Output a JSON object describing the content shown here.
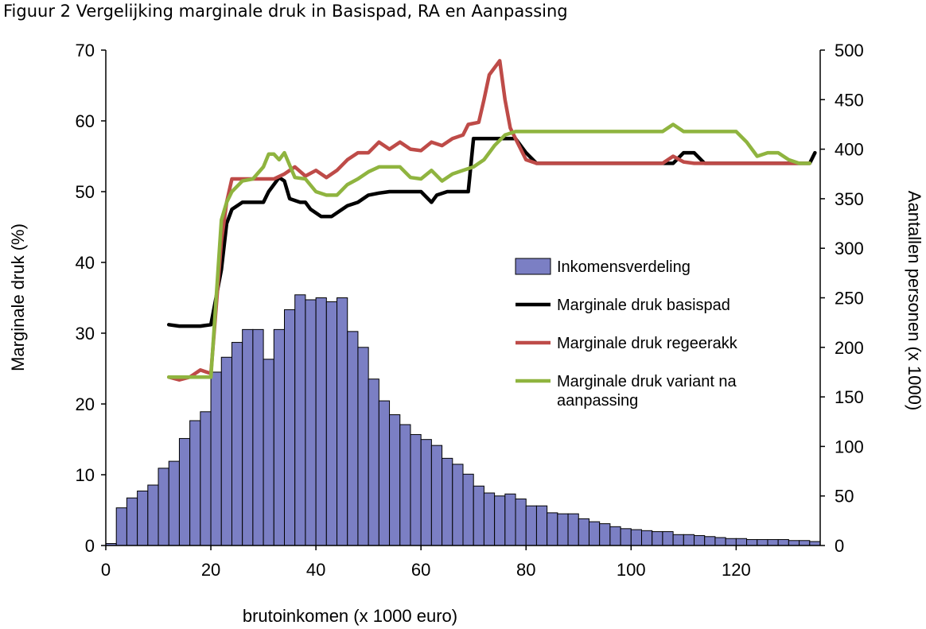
{
  "caption": "Figuur 2 Vergelijking marginale druk in Basispad, RA en Aanpassing",
  "chart_data": {
    "type": "bar+line",
    "xlabel": "brutoinkomen (x 1000 euro)",
    "ylabel_left": "Marginale druk (%)",
    "ylabel_right": "Aantallen personen (x 1000)",
    "xlim": [
      0,
      136
    ],
    "ylim_left": [
      0,
      70
    ],
    "ylim_right": [
      0,
      500
    ],
    "x_ticks": [
      0,
      20,
      40,
      60,
      80,
      100,
      120
    ],
    "y_left_ticks": [
      0,
      10,
      20,
      30,
      40,
      50,
      60,
      70
    ],
    "y_right_ticks": [
      0,
      50,
      100,
      150,
      200,
      250,
      300,
      350,
      400,
      450,
      500
    ],
    "grid": false,
    "legend_position": "right-middle",
    "histogram": {
      "name": "Inkomensverdeling",
      "color": "#7b7fc4",
      "bin_width": 2,
      "bin_starts": [
        0,
        2,
        4,
        6,
        8,
        10,
        12,
        14,
        16,
        18,
        20,
        22,
        24,
        26,
        28,
        30,
        32,
        34,
        36,
        38,
        40,
        42,
        44,
        46,
        48,
        50,
        52,
        54,
        56,
        58,
        60,
        62,
        64,
        66,
        68,
        70,
        72,
        74,
        76,
        78,
        80,
        82,
        84,
        86,
        88,
        90,
        92,
        94,
        96,
        98,
        100,
        102,
        104,
        106,
        108,
        110,
        112,
        114,
        116,
        118,
        120,
        122,
        124,
        126,
        128,
        130,
        132,
        134
      ],
      "values": [
        2,
        38,
        48,
        55,
        61,
        78,
        85,
        108,
        126,
        135,
        175,
        190,
        205,
        218,
        218,
        188,
        218,
        238,
        253,
        248,
        250,
        246,
        250,
        216,
        200,
        168,
        146,
        132,
        122,
        112,
        107,
        101,
        88,
        82,
        72,
        60,
        53,
        50,
        52,
        47,
        40,
        40,
        33,
        32,
        32,
        27,
        24,
        22,
        19,
        17,
        16,
        15,
        14,
        14,
        11,
        11,
        10,
        9,
        8,
        7,
        7,
        6,
        6,
        6,
        6,
        5,
        5,
        4
      ]
    },
    "series": [
      {
        "name": "Marginale druk basispad",
        "color": "#000000",
        "points": [
          [
            12,
            31.2
          ],
          [
            14,
            31.0
          ],
          [
            16,
            31.0
          ],
          [
            18,
            31.0
          ],
          [
            20,
            31.2
          ],
          [
            22,
            39.0
          ],
          [
            23,
            45.5
          ],
          [
            24,
            47.5
          ],
          [
            26,
            48.5
          ],
          [
            28,
            48.5
          ],
          [
            30,
            48.5
          ],
          [
            31,
            50.0
          ],
          [
            33,
            52.0
          ],
          [
            34,
            51.5
          ],
          [
            35,
            49.0
          ],
          [
            37,
            48.5
          ],
          [
            38,
            48.5
          ],
          [
            39,
            47.5
          ],
          [
            41,
            46.5
          ],
          [
            43,
            46.5
          ],
          [
            44,
            47.0
          ],
          [
            46,
            48.0
          ],
          [
            48,
            48.5
          ],
          [
            50,
            49.5
          ],
          [
            52,
            49.8
          ],
          [
            54,
            50.0
          ],
          [
            56,
            50.0
          ],
          [
            58,
            50.0
          ],
          [
            60,
            50.0
          ],
          [
            62,
            48.5
          ],
          [
            63,
            49.5
          ],
          [
            65,
            50.0
          ],
          [
            67,
            50.0
          ],
          [
            69,
            50.0
          ],
          [
            70,
            57.5
          ],
          [
            72,
            57.5
          ],
          [
            74,
            57.5
          ],
          [
            76,
            57.5
          ],
          [
            78,
            57.5
          ],
          [
            80,
            55.5
          ],
          [
            82,
            54.0
          ],
          [
            84,
            54.0
          ],
          [
            86,
            54.0
          ],
          [
            90,
            54.0
          ],
          [
            95,
            54.0
          ],
          [
            100,
            54.0
          ],
          [
            106,
            54.0
          ],
          [
            108,
            54.0
          ],
          [
            110,
            55.5
          ],
          [
            112,
            55.5
          ],
          [
            114,
            54.0
          ],
          [
            118,
            54.0
          ],
          [
            124,
            54.0
          ],
          [
            128,
            54.0
          ],
          [
            130,
            54.0
          ],
          [
            132,
            54.0
          ],
          [
            134,
            54.0
          ],
          [
            135,
            55.5
          ]
        ]
      },
      {
        "name": "Marginale druk regeerakk",
        "color": "#be4b48",
        "points": [
          [
            12,
            23.8
          ],
          [
            14,
            23.4
          ],
          [
            16,
            23.8
          ],
          [
            18,
            24.8
          ],
          [
            20,
            24.3
          ],
          [
            22,
            43.0
          ],
          [
            23,
            48.5
          ],
          [
            24,
            51.8
          ],
          [
            26,
            51.8
          ],
          [
            28,
            51.8
          ],
          [
            30,
            51.8
          ],
          [
            32,
            51.8
          ],
          [
            34,
            52.5
          ],
          [
            36,
            53.5
          ],
          [
            38,
            52.2
          ],
          [
            40,
            53.0
          ],
          [
            42,
            52.0
          ],
          [
            44,
            53.0
          ],
          [
            46,
            54.5
          ],
          [
            48,
            55.5
          ],
          [
            50,
            55.5
          ],
          [
            52,
            57.0
          ],
          [
            54,
            56.0
          ],
          [
            56,
            57.0
          ],
          [
            58,
            56.0
          ],
          [
            60,
            55.8
          ],
          [
            62,
            57.0
          ],
          [
            64,
            56.5
          ],
          [
            66,
            57.5
          ],
          [
            68,
            58.0
          ],
          [
            69,
            59.5
          ],
          [
            71,
            59.8
          ],
          [
            72,
            63.0
          ],
          [
            73,
            66.5
          ],
          [
            75,
            68.5
          ],
          [
            76,
            63.0
          ],
          [
            77,
            59.0
          ],
          [
            79,
            56.0
          ],
          [
            80,
            54.5
          ],
          [
            82,
            54.0
          ],
          [
            86,
            54.0
          ],
          [
            90,
            54.0
          ],
          [
            95,
            54.0
          ],
          [
            100,
            54.0
          ],
          [
            106,
            54.0
          ],
          [
            108,
            55.0
          ],
          [
            110,
            54.2
          ],
          [
            112,
            54.0
          ],
          [
            118,
            54.0
          ],
          [
            124,
            54.0
          ],
          [
            130,
            54.0
          ],
          [
            134,
            54.0
          ]
        ]
      },
      {
        "name": "Marginale druk variant na aanpassing",
        "color": "#8fb43f",
        "points": [
          [
            12,
            23.8
          ],
          [
            14,
            23.8
          ],
          [
            16,
            23.8
          ],
          [
            18,
            23.8
          ],
          [
            20,
            23.8
          ],
          [
            22,
            46.0
          ],
          [
            23,
            48.5
          ],
          [
            24,
            50.0
          ],
          [
            26,
            51.5
          ],
          [
            28,
            51.8
          ],
          [
            30,
            53.5
          ],
          [
            31,
            55.3
          ],
          [
            32,
            55.3
          ],
          [
            33,
            54.5
          ],
          [
            34,
            55.5
          ],
          [
            36,
            52.0
          ],
          [
            38,
            51.8
          ],
          [
            40,
            50.0
          ],
          [
            42,
            49.5
          ],
          [
            44,
            49.5
          ],
          [
            46,
            51.0
          ],
          [
            48,
            51.8
          ],
          [
            50,
            52.8
          ],
          [
            52,
            53.5
          ],
          [
            54,
            53.5
          ],
          [
            56,
            53.5
          ],
          [
            58,
            52.0
          ],
          [
            60,
            51.8
          ],
          [
            62,
            53.0
          ],
          [
            64,
            51.5
          ],
          [
            66,
            52.5
          ],
          [
            68,
            53.0
          ],
          [
            70,
            53.5
          ],
          [
            72,
            54.5
          ],
          [
            74,
            56.5
          ],
          [
            76,
            58.0
          ],
          [
            78,
            58.5
          ],
          [
            80,
            58.5
          ],
          [
            84,
            58.5
          ],
          [
            90,
            58.5
          ],
          [
            96,
            58.5
          ],
          [
            100,
            58.5
          ],
          [
            106,
            58.5
          ],
          [
            108,
            59.5
          ],
          [
            110,
            58.5
          ],
          [
            114,
            58.5
          ],
          [
            120,
            58.5
          ],
          [
            122,
            57.0
          ],
          [
            124,
            55.0
          ],
          [
            126,
            55.5
          ],
          [
            128,
            55.5
          ],
          [
            130,
            54.5
          ],
          [
            132,
            54.0
          ],
          [
            134,
            54.0
          ]
        ]
      }
    ],
    "legend": {
      "entries": [
        {
          "label": "Inkomensverdeling",
          "kind": "bar"
        },
        {
          "label": "Marginale druk basispad",
          "kind": "line"
        },
        {
          "label": "Marginale druk regeerakk",
          "kind": "line"
        },
        {
          "label": "Marginale druk variant na",
          "label2": "aanpassing",
          "kind": "line"
        }
      ]
    }
  }
}
